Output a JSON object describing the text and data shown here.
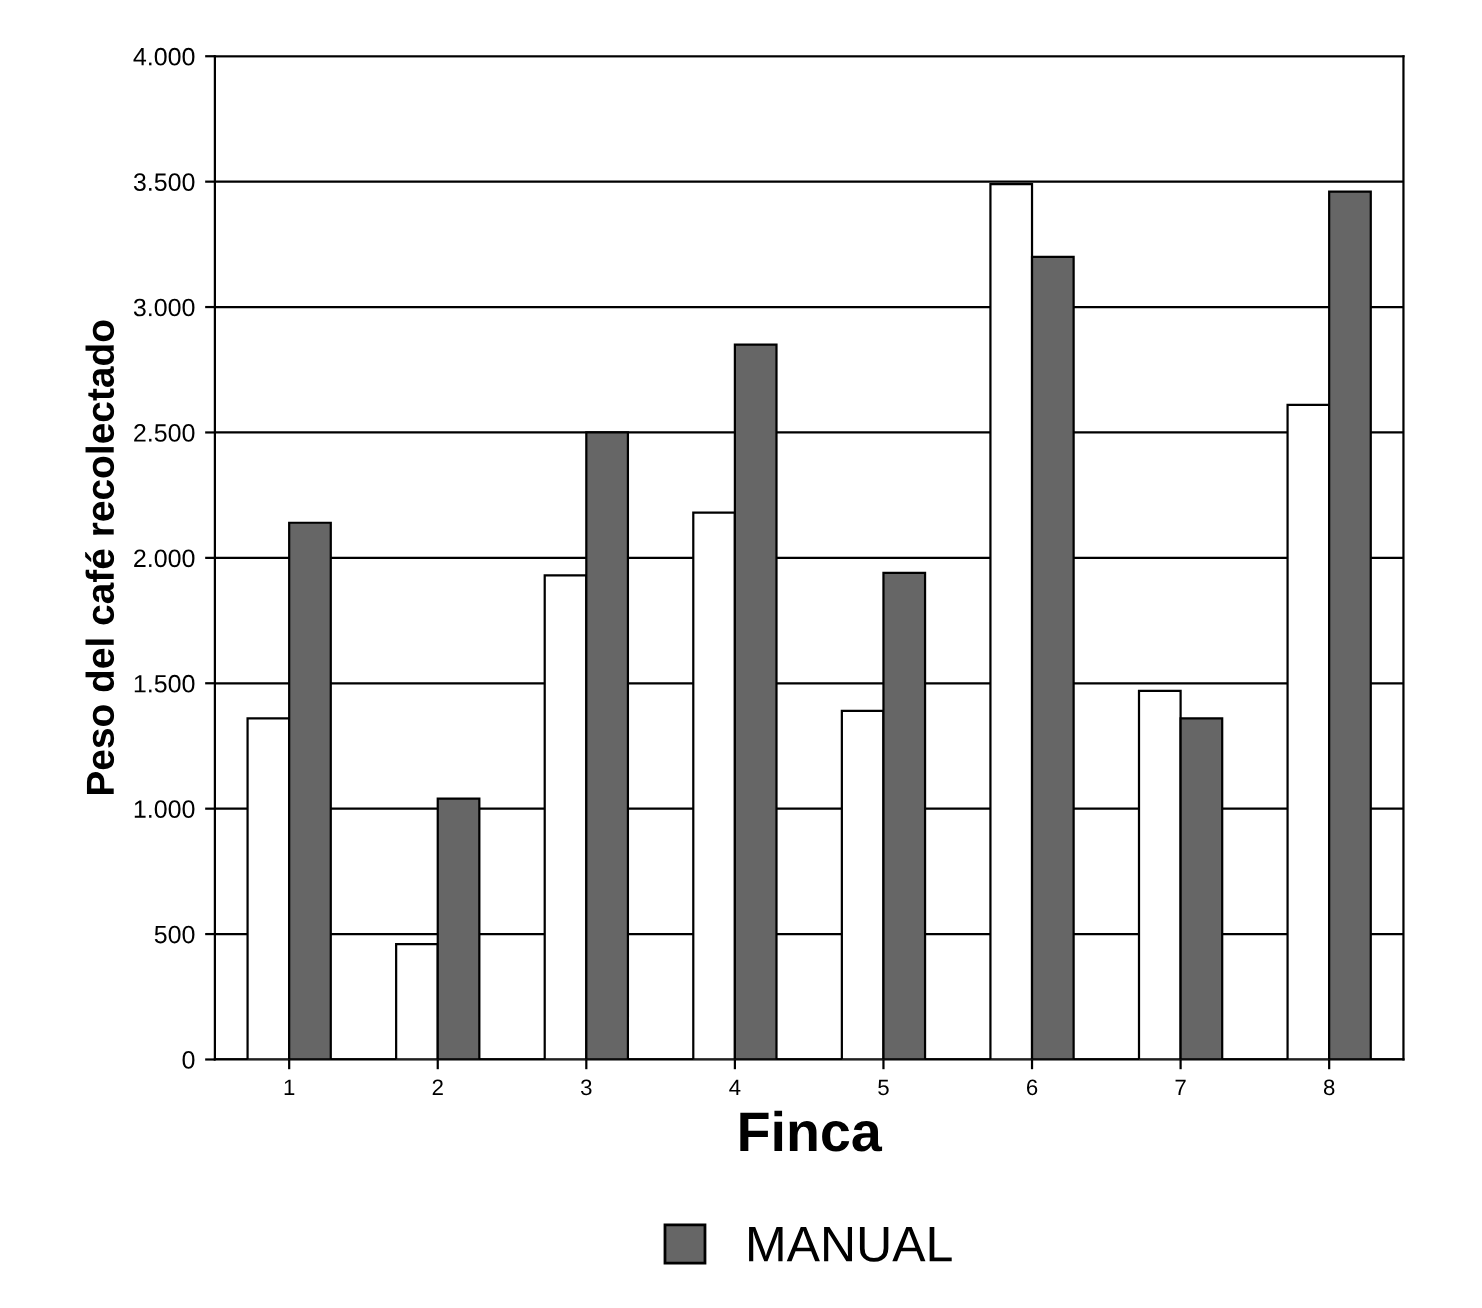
{
  "chart_data": {
    "type": "bar",
    "xlabel": "Finca",
    "ylabel": "Peso del café recolectado",
    "categories": [
      "1",
      "2",
      "3",
      "4",
      "5",
      "6",
      "7",
      "8"
    ],
    "series": [
      {
        "color": "#ffffff",
        "values": [
          1360,
          460,
          1930,
          2180,
          1390,
          3490,
          1470,
          2610
        ]
      },
      {
        "name": "MANUAL",
        "color": "#666666",
        "values": [
          2140,
          1040,
          2500,
          2850,
          1940,
          3200,
          1360,
          3460
        ]
      }
    ],
    "ylim": [
      0,
      4000
    ],
    "yticks": [
      0,
      {
        "value": 500,
        "label": "500"
      },
      {
        "value": 1000,
        "label": "1.000"
      },
      {
        "value": 1500,
        "label": "1.500"
      },
      {
        "value": 2000,
        "label": "2.000"
      },
      {
        "value": 2500,
        "label": "2.500"
      },
      {
        "value": 3000,
        "label": "3.000"
      },
      {
        "value": 3500,
        "label": "3.500"
      },
      {
        "value": 4000,
        "label": "4.000"
      }
    ],
    "grid": "y",
    "legend": "bottom"
  }
}
